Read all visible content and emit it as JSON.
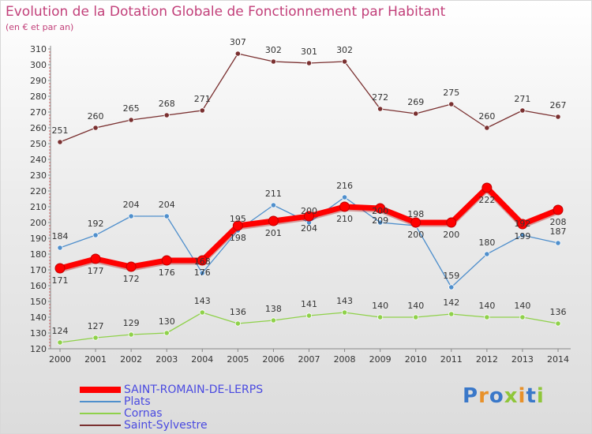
{
  "title": "Evolution de la Dotation Globale de Fonctionnement par Habitant",
  "subtitle": "(en € et par an)",
  "logo": "Proxiti",
  "colors": {
    "accent": "#c2407a",
    "background_top": "#ffffff",
    "background_bottom": "#dcdcdc"
  },
  "chart_data": {
    "type": "line",
    "x": [
      "2000",
      "2001",
      "2002",
      "2003",
      "2004",
      "2005",
      "2006",
      "2007",
      "2008",
      "2009",
      "2010",
      "2011",
      "2012",
      "2013",
      "2014"
    ],
    "ylim": [
      120,
      310
    ],
    "yticks": [
      120,
      130,
      140,
      150,
      160,
      170,
      180,
      190,
      200,
      210,
      220,
      230,
      240,
      250,
      260,
      270,
      280,
      290,
      300,
      310
    ],
    "grid": false,
    "legend_position": "bottom-left",
    "series": [
      {
        "name": "SAINT-ROMAIN-DE-LERPS",
        "color": "#ff0000",
        "emphasis": true,
        "values": [
          171,
          177,
          172,
          176,
          176,
          198,
          201,
          204,
          210,
          209,
          200,
          200,
          222,
          199,
          208
        ]
      },
      {
        "name": "Plats",
        "color": "#4f8fcc",
        "values": [
          184,
          192,
          204,
          204,
          168,
          195,
          211,
          200,
          216,
          200,
          198,
          159,
          180,
          192,
          187
        ]
      },
      {
        "name": "Cornas",
        "color": "#8fd14a",
        "values": [
          124,
          127,
          129,
          130,
          143,
          136,
          138,
          141,
          143,
          140,
          140,
          142,
          140,
          140,
          136
        ]
      },
      {
        "name": "Saint-Sylvestre",
        "color": "#7a3030",
        "values": [
          251,
          260,
          265,
          268,
          271,
          307,
          302,
          301,
          302,
          272,
          269,
          275,
          260,
          271,
          267
        ]
      }
    ]
  }
}
